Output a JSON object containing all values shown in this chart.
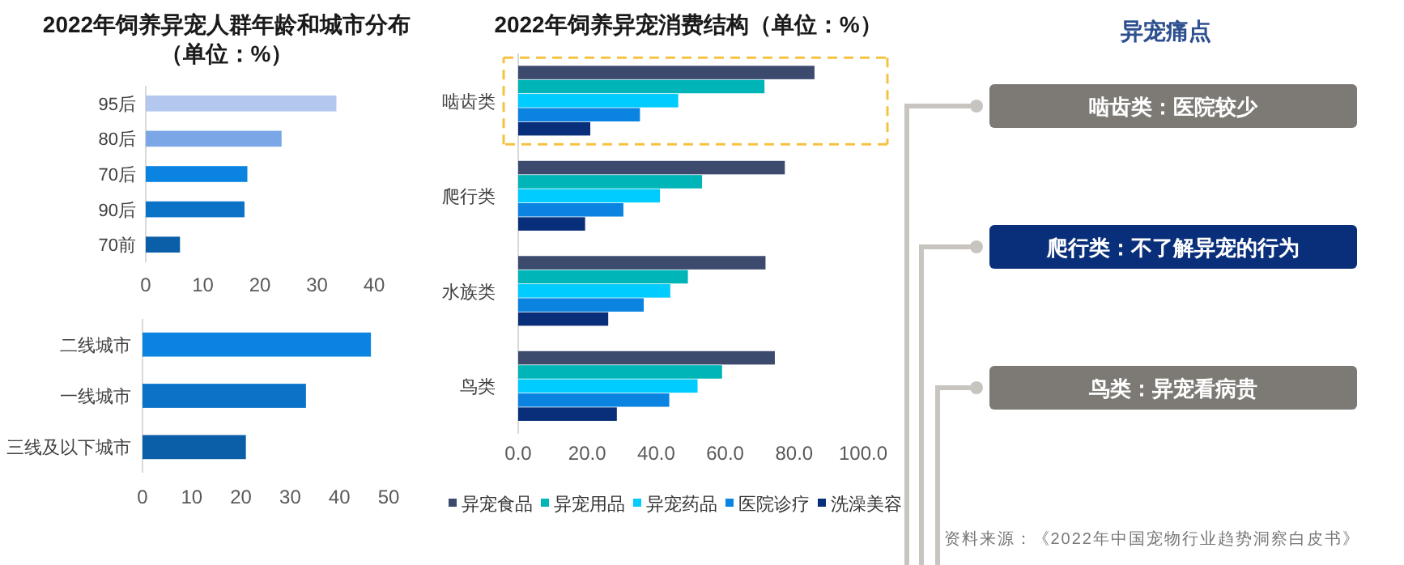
{
  "chart_data": [
    {
      "type": "bar",
      "orientation": "horizontal",
      "title": "2022年饲养异宠人群年龄和城市分布（单位：%）",
      "categories": [
        "95后",
        "80后",
        "70后",
        "90后",
        "70前"
      ],
      "values": [
        33.4,
        23.8,
        17.8,
        17.3,
        6.0
      ],
      "colors": [
        "#b4c7ee",
        "#7ba7e6",
        "#0a84e0",
        "#0a73c8",
        "#0b5ea8"
      ],
      "xlim": [
        0,
        40
      ],
      "xticks": [
        0,
        10,
        20,
        30,
        40
      ],
      "grid": false,
      "legend": false
    },
    {
      "type": "bar",
      "orientation": "horizontal",
      "categories": [
        "二线城市",
        "一线城市",
        "三线及以下城市"
      ],
      "values": [
        46.4,
        33.2,
        21.0
      ],
      "colors": [
        "#0a84e0",
        "#0a73c8",
        "#0b5ea8"
      ],
      "xlim": [
        0,
        50
      ],
      "xticks": [
        0,
        10,
        20,
        30,
        40,
        50
      ],
      "grid": false,
      "legend": false
    },
    {
      "type": "bar",
      "orientation": "horizontal",
      "title": "2022年饲养异宠消费结构（单位：%）",
      "categories": [
        "啮齿类",
        "爬行类",
        "水族类",
        "鸟类"
      ],
      "series": [
        {
          "name": "异宠食品",
          "color": "#3c4a6e",
          "values": [
            85.9,
            77.3,
            71.7,
            74.4
          ]
        },
        {
          "name": "异宠用品",
          "color": "#00b5b8",
          "values": [
            71.4,
            53.3,
            49.2,
            59.1
          ]
        },
        {
          "name": "异宠药品",
          "color": "#00ccff",
          "values": [
            46.4,
            41.1,
            44.1,
            52.0
          ]
        },
        {
          "name": "医院诊疗",
          "color": "#0a84e0",
          "values": [
            35.3,
            30.5,
            36.4,
            43.8
          ]
        },
        {
          "name": "洗澡美容",
          "color": "#0a2f7a",
          "values": [
            20.9,
            19.4,
            26.1,
            28.6
          ]
        }
      ],
      "xlim": [
        0,
        100
      ],
      "xticks": [
        {
          "value": 0,
          "label": "0.0"
        },
        {
          "value": 20,
          "label": "20.0"
        },
        {
          "value": 40,
          "label": "40.0"
        },
        {
          "value": 60,
          "label": "60.0"
        },
        {
          "value": 80,
          "label": "80.0"
        },
        {
          "value": 100,
          "label": "100.0"
        }
      ],
      "grid": false,
      "legend": "bottom"
    },
    {
      "type": "other",
      "title": "异宠痛点",
      "annotations": [
        "啮齿类：医院较少",
        "爬行类：不了解异宠的行为",
        "鸟类：异宠看病贵",
        "资料来源：《2022年中国宠物行业趋势洞察白皮书》"
      ],
      "colors": [
        "#7d7a75",
        "#0a2f7a",
        "#7d7a75"
      ]
    }
  ]
}
